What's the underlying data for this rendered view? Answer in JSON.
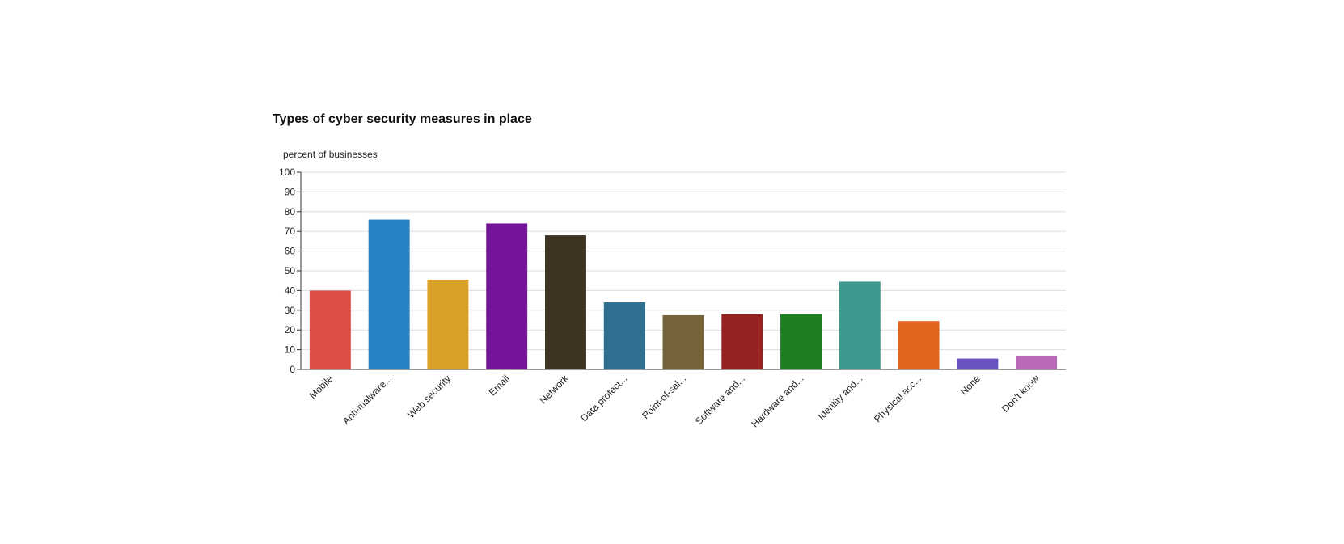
{
  "chart_data": {
    "type": "bar",
    "title": "Types of cyber security measures in place",
    "ylabel": "percent of businesses",
    "xlabel": "",
    "ylim": [
      0,
      100
    ],
    "yticks": [
      0,
      10,
      20,
      30,
      40,
      50,
      60,
      70,
      80,
      90,
      100
    ],
    "grid": true,
    "legend": "none",
    "categories": [
      "Mobile",
      "Anti-malware...",
      "Web security",
      "Email",
      "Network",
      "Data protect...",
      "Point-of-sal...",
      "Software and...",
      "Hardware and...",
      "Identity and...",
      "Physical acc...",
      "None",
      "Don't know"
    ],
    "values": [
      40,
      76,
      45.5,
      74,
      68,
      34,
      27.5,
      28,
      28,
      44.5,
      24.5,
      5.5,
      7
    ],
    "colors": [
      "#dd4e47",
      "#2683c6",
      "#d9a026",
      "#75139a",
      "#3e3424",
      "#2f6f8f",
      "#75633b",
      "#952220",
      "#1f7d24",
      "#3e998e",
      "#e1651a",
      "#6b52c2",
      "#b968b8"
    ]
  }
}
